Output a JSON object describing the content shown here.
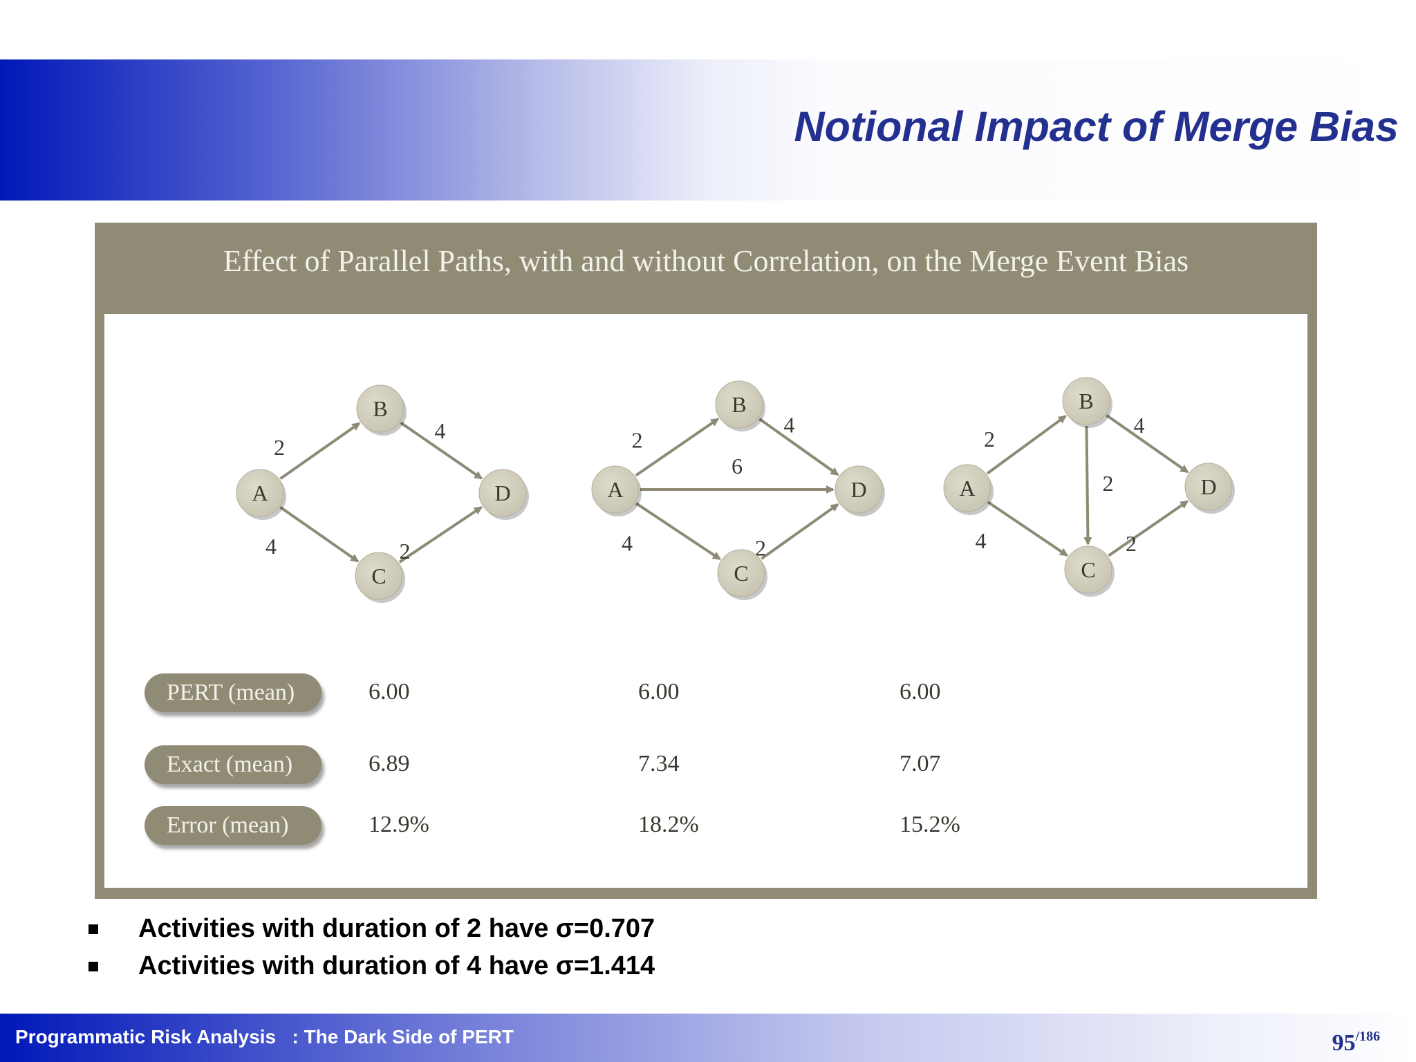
{
  "slide": {
    "title": "Notional Impact of Merge Bias"
  },
  "figure": {
    "title": "Effect of Parallel Paths, with and without Correlation, on the Merge Event Bias",
    "networks": [
      {
        "nodes": [
          "A",
          "B",
          "C",
          "D"
        ],
        "edges": [
          {
            "from": "A",
            "to": "B",
            "duration": "2"
          },
          {
            "from": "B",
            "to": "D",
            "duration": "4"
          },
          {
            "from": "A",
            "to": "C",
            "duration": "4"
          },
          {
            "from": "C",
            "to": "D",
            "duration": "2"
          }
        ]
      },
      {
        "nodes": [
          "A",
          "B",
          "C",
          "D"
        ],
        "edges": [
          {
            "from": "A",
            "to": "B",
            "duration": "2"
          },
          {
            "from": "B",
            "to": "D",
            "duration": "4"
          },
          {
            "from": "A",
            "to": "D",
            "duration": "6"
          },
          {
            "from": "A",
            "to": "C",
            "duration": "4"
          },
          {
            "from": "C",
            "to": "D",
            "duration": "2"
          }
        ]
      },
      {
        "nodes": [
          "A",
          "B",
          "C",
          "D"
        ],
        "edges": [
          {
            "from": "A",
            "to": "B",
            "duration": "2"
          },
          {
            "from": "B",
            "to": "D",
            "duration": "4"
          },
          {
            "from": "B",
            "to": "C",
            "duration": "2"
          },
          {
            "from": "A",
            "to": "C",
            "duration": "4"
          },
          {
            "from": "C",
            "to": "D",
            "duration": "2"
          }
        ]
      }
    ],
    "table": {
      "rows": [
        {
          "label": "PERT (mean)",
          "values": [
            "6.00",
            "6.00",
            "6.00"
          ]
        },
        {
          "label": "Exact (mean)",
          "values": [
            "6.89",
            "7.34",
            "7.07"
          ]
        },
        {
          "label": "Error (mean)",
          "values": [
            "12.9%",
            "18.2%",
            "15.2%"
          ]
        }
      ]
    }
  },
  "bullets": [
    "Activities with duration of 2 have σ=0.707",
    "Activities with duration of 4 have σ=1.414"
  ],
  "footer": {
    "text": "Programmatic Risk Analysis   : The Dark Side of PERT",
    "page": "95",
    "total": "/186"
  },
  "colors": {
    "title": "#23308f",
    "figure_frame": "#908b74",
    "node_fill": "#c9c5b3",
    "edge": "#8d8a76"
  }
}
